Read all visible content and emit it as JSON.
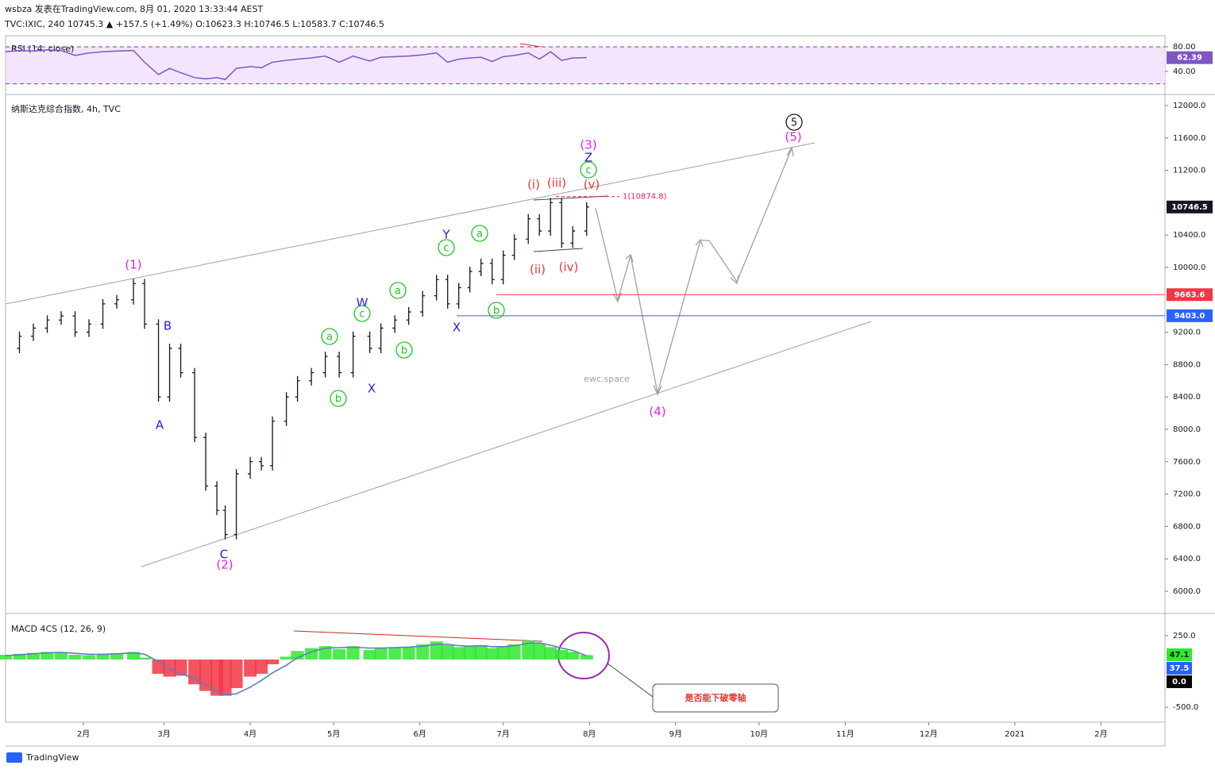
{
  "header": {
    "line1": "wsbza 发表在TradingView.com, 8月 01, 2020 13:33:44 AEST",
    "line2": "TVC:IXIC, 240 10745.3 ▲ +157.5 (+1.49%) O:10623.3 H:10746.5 L:10583.7 C:10746.5"
  },
  "watermark": "ewc.space",
  "callout": "是否能下破零轴",
  "footer": "TradingView",
  "chart_data": [
    {
      "type": "ohlc",
      "title": "纳斯达克综合指数, 4h, TVC",
      "color": "#131722",
      "x": [
        3,
        8,
        13,
        18,
        23,
        28,
        33,
        38,
        43,
        49,
        53,
        58,
        62,
        66,
        71,
        75,
        79,
        82,
        86,
        91,
        95,
        99,
        104,
        108,
        113,
        118,
        123,
        128,
        134,
        138,
        143,
        148,
        153,
        158,
        162,
        166,
        170,
        174,
        178,
        182,
        186,
        191,
        195,
        199,
        203,
        207,
        212
      ],
      "values": [
        9000,
        9150,
        9250,
        9350,
        9400,
        9200,
        9300,
        9550,
        9600,
        9800,
        9300,
        8400,
        9000,
        8700,
        7900,
        7300,
        7000,
        6700,
        7450,
        7600,
        7550,
        8100,
        8400,
        8600,
        8700,
        8900,
        8700,
        9150,
        9000,
        9250,
        9350,
        9450,
        9650,
        9850,
        9550,
        9750,
        9950,
        10050,
        9850,
        10150,
        10350,
        10600,
        10450,
        10800,
        10300,
        10450,
        10746.5
      ],
      "xlim": [
        3,
        420
      ],
      "xticks": [
        {
          "value": 31,
          "label": "2月"
        },
        {
          "value": 60,
          "label": "3月"
        },
        {
          "value": 91,
          "label": "4月"
        },
        {
          "value": 121,
          "label": "5月"
        },
        {
          "value": 152,
          "label": "6月"
        },
        {
          "value": 182,
          "label": "7月"
        },
        {
          "value": 213,
          "label": "8月"
        },
        {
          "value": 244,
          "label": "9月"
        },
        {
          "value": 274,
          "label": "10月"
        },
        {
          "value": 305,
          "label": "11月"
        },
        {
          "value": 335,
          "label": "12月"
        },
        {
          "value": 366,
          "label": "2021"
        },
        {
          "value": 397,
          "label": "2月"
        }
      ],
      "ylim": [
        5735,
        12127
      ],
      "yticks": [
        {
          "value": 6000,
          "label": "6000.0"
        },
        {
          "value": 6400,
          "label": "6400.0"
        },
        {
          "value": 6800,
          "label": "6800.0"
        },
        {
          "value": 7200,
          "label": "7200.0"
        },
        {
          "value": 7600,
          "label": "7600.0"
        },
        {
          "value": 8000,
          "label": "8000.0"
        },
        {
          "value": 8400,
          "label": "8400.0"
        },
        {
          "value": 8800,
          "label": "8800.0"
        },
        {
          "value": 9200,
          "label": "9200.0"
        },
        {
          "value": 10000,
          "label": "10000.0"
        },
        {
          "value": 10400,
          "label": "10400.0"
        },
        {
          "value": 11200,
          "label": "11200.0"
        },
        {
          "value": 11600,
          "label": "11600.0"
        },
        {
          "value": 12000,
          "label": "12000.0"
        }
      ],
      "last_price": 10746.5,
      "levels": [
        {
          "price": 9663.6,
          "color": "#f23645"
        },
        {
          "price": {
            "value": 9403,
            "label": "9403.0"
          },
          "color": "#2962ff"
        }
      ],
      "fib_level": {
        "value": 10874.8,
        "label": "1(10874.8)"
      },
      "annotations": [
        {
          "text": "(1)",
          "color": "#e91ee9"
        },
        {
          "text": "B",
          "color": "#2323d6"
        },
        {
          "text": "A",
          "color": "#2323d6"
        },
        {
          "text": "C",
          "color": "#2323d6"
        },
        {
          "text": "(2)",
          "color": "#e91ee9"
        },
        {
          "text": "W",
          "color": "#2323d6"
        },
        {
          "text": "X",
          "color": "#2323d6"
        },
        {
          "text": "Y",
          "color": "#2323d6"
        },
        {
          "text": "X",
          "color": "#2323d6"
        },
        {
          "text": "Z",
          "color": "#2323d6"
        },
        {
          "text": "(3)",
          "color": "#e91ee9"
        },
        {
          "text": "(4)",
          "color": "#e91ee9"
        },
        {
          "text": "(5)",
          "color": "#e91ee9"
        },
        {
          "text": "(i)",
          "color": "#e53935"
        },
        {
          "text": "(ii)",
          "color": "#e53935"
        },
        {
          "text": "(iii)",
          "color": "#e53935"
        },
        {
          "text": "(iv)",
          "color": "#e53935"
        },
        {
          "text": "(v)",
          "color": "#e53935"
        },
        {
          "text": "a",
          "color": "#1fc41f",
          "circled": true
        },
        {
          "text": "b",
          "color": "#1fc41f",
          "circled": true
        },
        {
          "text": "c",
          "color": "#1fc41f",
          "circled": true
        },
        {
          "text": "a",
          "color": "#1fc41f",
          "circled": true
        },
        {
          "text": "b",
          "color": "#1fc41f",
          "circled": true
        },
        {
          "text": "c",
          "color": "#1fc41f",
          "circled": true
        },
        {
          "text": "a",
          "color": "#1fc41f",
          "circled": true
        },
        {
          "text": "b",
          "color": "#1fc41f",
          "circled": true
        },
        {
          "text": "c",
          "color": "#1fc41f",
          "circled": true
        },
        {
          "text": "5",
          "color": "#131722",
          "circled": true
        }
      ]
    },
    {
      "type": "line",
      "title": "RSI (14, close)",
      "color": "#7e57c2",
      "values": [
        72,
        74,
        73,
        75,
        74,
        66,
        70,
        72,
        73,
        74,
        55,
        35,
        45,
        38,
        30,
        28,
        30,
        27,
        45,
        48,
        46,
        55,
        58,
        60,
        62,
        65,
        55,
        65,
        57,
        63,
        64,
        65,
        67,
        70,
        55,
        60,
        62,
        63,
        56,
        64,
        66,
        70,
        60,
        72,
        58,
        62,
        62.39
      ],
      "ylim": [
        4,
        98
      ],
      "yticks": [
        {
          "value": 80,
          "label": "80.00"
        },
        {
          "value": 40,
          "label": "40.00"
        }
      ],
      "bands": [
        20,
        80
      ],
      "band_color": "#f3e5fd",
      "last": 62.39
    },
    {
      "type": "macd",
      "title": "MACD 4CS (12, 26, 9)",
      "histogram": {
        "up_color": "#2ee82e",
        "down_color": "#f23645",
        "values": [
          50,
          60,
          70,
          80,
          75,
          50,
          45,
          60,
          65,
          80,
          20,
          -150,
          -180,
          -170,
          -260,
          -330,
          -380,
          -380,
          -300,
          -180,
          -150,
          -50,
          30,
          90,
          120,
          140,
          110,
          140,
          100,
          120,
          130,
          130,
          160,
          190,
          150,
          130,
          140,
          150,
          120,
          140,
          160,
          200,
          170,
          130,
          100,
          80,
          47.1
        ]
      },
      "signal": {
        "color": "#5b7fbd",
        "values": [
          40,
          50,
          60,
          70,
          75,
          65,
          55,
          55,
          60,
          70,
          55,
          -20,
          -100,
          -150,
          -200,
          -270,
          -330,
          -370,
          -360,
          -290,
          -220,
          -140,
          -60,
          20,
          80,
          120,
          125,
          130,
          120,
          120,
          125,
          130,
          140,
          160,
          160,
          145,
          140,
          145,
          135,
          135,
          145,
          170,
          175,
          150,
          120,
          95,
          37.5
        ]
      },
      "ylim": [
        -658,
        450
      ],
      "yticks": [
        {
          "value": 250,
          "label": "250.0"
        },
        {
          "value": -500,
          "label": "-500.0"
        }
      ],
      "badges": [
        {
          "value": 47.1,
          "color": "#2ee82e"
        },
        {
          "value": 37.5,
          "color": "#2962ff"
        },
        {
          "value": {
            "value": 0,
            "label": "0.0"
          },
          "color": "#000000"
        }
      ]
    }
  ]
}
